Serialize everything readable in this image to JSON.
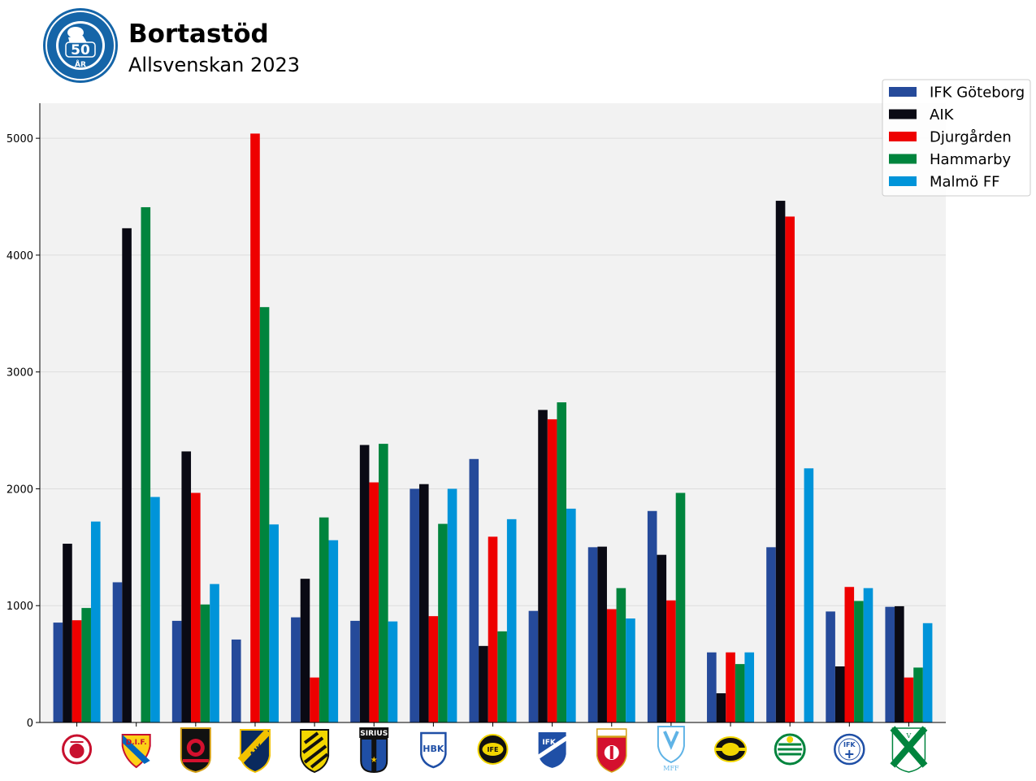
{
  "header": {
    "title": "Bortastöd",
    "subtitle": "Allsvenskan 2023",
    "logo_icon": "supporterklubben-anglarna-50-ar-logo-icon",
    "logo_color": "#1565a8"
  },
  "chart_data": {
    "type": "bar",
    "title": "Bortastöd",
    "subtitle": "Allsvenskan 2023",
    "xlabel": "",
    "ylabel": "",
    "ylim": [
      0,
      5300
    ],
    "yticks": [
      "0",
      "1000",
      "2000",
      "3000",
      "4000",
      "5000"
    ],
    "grid": "horizontal",
    "legend_position": "top-right",
    "plot_background": "#f2f2f2",
    "categories": [
      "kalmar-ff-crest-icon",
      "djurgarden-crest-icon",
      "brommapojkarna-crest-icon",
      "aik-crest-icon",
      "hacken-crest-icon",
      "sirius-crest-icon",
      "halmstad-crest-icon",
      "elfsborg-crest-icon",
      "ifk-norrkoping-crest-icon",
      "degerfors-crest-icon",
      "malmo-ff-crest-icon",
      "mjallby-crest-icon",
      "hammarby-crest-icon",
      "ifk-varnamo-crest-icon",
      "varbergs-bois-crest-icon"
    ],
    "series": [
      {
        "name": "IFK Göteborg",
        "color": "#254a9a",
        "values": [
          855,
          1200,
          870,
          710,
          900,
          870,
          2000,
          2255,
          955,
          1500,
          1810,
          600,
          1500,
          950,
          990
        ]
      },
      {
        "name": "AIK",
        "color": "#0a0a14",
        "values": [
          1530,
          4230,
          2320,
          0,
          1230,
          2375,
          2040,
          655,
          2675,
          1505,
          1435,
          250,
          4465,
          480,
          995
        ]
      },
      {
        "name": "Djurgården",
        "color": "#ee0000",
        "values": [
          875,
          0,
          1965,
          5040,
          385,
          2055,
          910,
          1590,
          2595,
          970,
          1045,
          600,
          4330,
          1160,
          385
        ]
      },
      {
        "name": "Hammarby",
        "color": "#00843d",
        "values": [
          980,
          4410,
          1010,
          3555,
          1755,
          2385,
          1700,
          780,
          2740,
          1150,
          1965,
          500,
          0,
          1040,
          470
        ]
      },
      {
        "name": "Malmö FF",
        "color": "#0094d9",
        "values": [
          1720,
          1930,
          1185,
          1695,
          1560,
          865,
          2000,
          1740,
          1830,
          890,
          0,
          600,
          2175,
          1150,
          850
        ]
      }
    ]
  }
}
